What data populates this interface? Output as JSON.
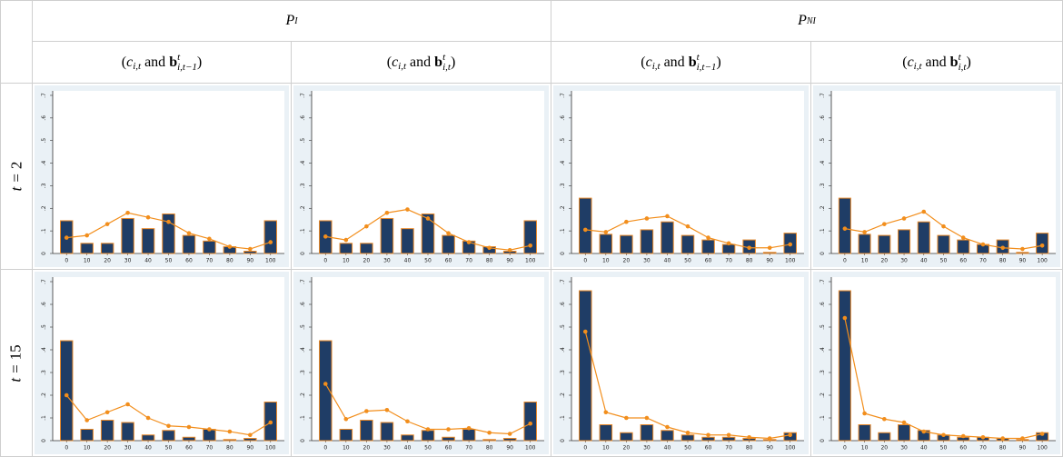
{
  "header": {
    "groups": [
      {
        "main": "P",
        "sub": "I"
      },
      {
        "main": "P",
        "sub": "NI"
      }
    ],
    "columns": [
      {
        "open": "(",
        "c": "c",
        "c_sub": "i,t",
        "and": "and",
        "b": "b",
        "b_sup": "t",
        "b_sub": "i,t−1",
        "close": ")"
      },
      {
        "open": "(",
        "c": "c",
        "c_sub": "i,t",
        "and": "and",
        "b": "b",
        "b_sup": "t",
        "b_sub": "i,t",
        "close": ")"
      },
      {
        "open": "(",
        "c": "c",
        "c_sub": "i,t",
        "and": "and",
        "b": "b",
        "b_sup": "t",
        "b_sub": "i,t−1",
        "close": ")"
      },
      {
        "open": "(",
        "c": "c",
        "c_sub": "i,t",
        "and": "and",
        "b": "b",
        "b_sup": "t",
        "b_sub": "i,t",
        "close": ")"
      }
    ]
  },
  "rows": [
    {
      "var": "t",
      "eq": "=",
      "num": "2"
    },
    {
      "var": "t",
      "eq": "=",
      "num": "15"
    }
  ],
  "chart_data": [
    {
      "type": "bar",
      "categories": [
        0,
        10,
        20,
        30,
        40,
        50,
        60,
        70,
        80,
        90,
        100
      ],
      "ylim": [
        0,
        0.72
      ],
      "yticks": [
        0,
        {
          "value": 0.1,
          "label": ".1"
        },
        {
          "value": 0.2,
          "label": ".2"
        },
        {
          "value": 0.3,
          "label": ".3"
        },
        {
          "value": 0.4,
          "label": ".4"
        },
        {
          "value": 0.5,
          "label": ".5"
        },
        {
          "value": 0.6,
          "label": ".6"
        },
        {
          "value": 0.7,
          "label": ".7"
        }
      ],
      "series": [
        {
          "type": "bar",
          "color": "#1f3d66",
          "edge": "#e8892a",
          "values": [
            0.145,
            0.045,
            0.045,
            0.155,
            0.11,
            0.175,
            0.08,
            0.055,
            0.03,
            0.01,
            0.145
          ]
        },
        {
          "type": "line",
          "color": "#f28e1c",
          "values": [
            0.07,
            0.08,
            0.13,
            0.18,
            0.16,
            0.14,
            0.09,
            0.065,
            0.03,
            0.02,
            0.05
          ]
        }
      ]
    },
    {
      "type": "bar",
      "categories": [
        0,
        10,
        20,
        30,
        40,
        50,
        60,
        70,
        80,
        90,
        100
      ],
      "ylim": [
        0,
        0.72
      ],
      "yticks": [
        0,
        {
          "value": 0.1,
          "label": ".1"
        },
        {
          "value": 0.2,
          "label": ".2"
        },
        {
          "value": 0.3,
          "label": ".3"
        },
        {
          "value": 0.4,
          "label": ".4"
        },
        {
          "value": 0.5,
          "label": ".5"
        },
        {
          "value": 0.6,
          "label": ".6"
        },
        {
          "value": 0.7,
          "label": ".7"
        }
      ],
      "series": [
        {
          "type": "bar",
          "color": "#1f3d66",
          "edge": "#e8892a",
          "values": [
            0.145,
            0.045,
            0.045,
            0.155,
            0.11,
            0.175,
            0.08,
            0.055,
            0.03,
            0.01,
            0.145
          ]
        },
        {
          "type": "line",
          "color": "#f28e1c",
          "values": [
            0.075,
            0.06,
            0.12,
            0.18,
            0.195,
            0.155,
            0.09,
            0.05,
            0.025,
            0.015,
            0.035
          ]
        }
      ]
    },
    {
      "type": "bar",
      "categories": [
        0,
        10,
        20,
        30,
        40,
        50,
        60,
        70,
        80,
        90,
        100
      ],
      "ylim": [
        0,
        0.72
      ],
      "yticks": [
        0,
        {
          "value": 0.1,
          "label": ".1"
        },
        {
          "value": 0.2,
          "label": ".2"
        },
        {
          "value": 0.3,
          "label": ".3"
        },
        {
          "value": 0.4,
          "label": ".4"
        },
        {
          "value": 0.5,
          "label": ".5"
        },
        {
          "value": 0.6,
          "label": ".6"
        },
        {
          "value": 0.7,
          "label": ".7"
        }
      ],
      "series": [
        {
          "type": "bar",
          "color": "#1f3d66",
          "edge": "#e8892a",
          "values": [
            0.245,
            0.085,
            0.08,
            0.105,
            0.14,
            0.08,
            0.06,
            0.04,
            0.06,
            0.005,
            0.09
          ]
        },
        {
          "type": "line",
          "color": "#f28e1c",
          "values": [
            0.105,
            0.095,
            0.14,
            0.155,
            0.165,
            0.12,
            0.07,
            0.045,
            0.025,
            0.025,
            0.04
          ]
        }
      ]
    },
    {
      "type": "bar",
      "categories": [
        0,
        10,
        20,
        30,
        40,
        50,
        60,
        70,
        80,
        90,
        100
      ],
      "ylim": [
        0,
        0.72
      ],
      "yticks": [
        0,
        {
          "value": 0.1,
          "label": ".1"
        },
        {
          "value": 0.2,
          "label": ".2"
        },
        {
          "value": 0.3,
          "label": ".3"
        },
        {
          "value": 0.4,
          "label": ".4"
        },
        {
          "value": 0.5,
          "label": ".5"
        },
        {
          "value": 0.6,
          "label": ".6"
        },
        {
          "value": 0.7,
          "label": ".7"
        }
      ],
      "series": [
        {
          "type": "bar",
          "color": "#1f3d66",
          "edge": "#e8892a",
          "values": [
            0.245,
            0.085,
            0.08,
            0.105,
            0.14,
            0.08,
            0.06,
            0.04,
            0.06,
            0.005,
            0.09
          ]
        },
        {
          "type": "line",
          "color": "#f28e1c",
          "values": [
            0.11,
            0.095,
            0.13,
            0.155,
            0.185,
            0.12,
            0.07,
            0.04,
            0.025,
            0.02,
            0.035
          ]
        }
      ]
    },
    {
      "type": "bar",
      "categories": [
        0,
        10,
        20,
        30,
        40,
        50,
        60,
        70,
        80,
        90,
        100
      ],
      "ylim": [
        0,
        0.72
      ],
      "yticks": [
        0,
        {
          "value": 0.1,
          "label": ".1"
        },
        {
          "value": 0.2,
          "label": ".2"
        },
        {
          "value": 0.3,
          "label": ".3"
        },
        {
          "value": 0.4,
          "label": ".4"
        },
        {
          "value": 0.5,
          "label": ".5"
        },
        {
          "value": 0.6,
          "label": ".6"
        },
        {
          "value": 0.7,
          "label": ".7"
        }
      ],
      "series": [
        {
          "type": "bar",
          "color": "#1f3d66",
          "edge": "#e8892a",
          "values": [
            0.44,
            0.05,
            0.09,
            0.08,
            0.025,
            0.045,
            0.015,
            0.05,
            0.005,
            0.01,
            0.17
          ]
        },
        {
          "type": "line",
          "color": "#f28e1c",
          "values": [
            0.2,
            0.09,
            0.125,
            0.16,
            0.1,
            0.065,
            0.06,
            0.05,
            0.04,
            0.025,
            0.08
          ]
        }
      ]
    },
    {
      "type": "bar",
      "categories": [
        0,
        10,
        20,
        30,
        40,
        50,
        60,
        70,
        80,
        90,
        100
      ],
      "ylim": [
        0,
        0.72
      ],
      "yticks": [
        0,
        {
          "value": 0.1,
          "label": ".1"
        },
        {
          "value": 0.2,
          "label": ".2"
        },
        {
          "value": 0.3,
          "label": ".3"
        },
        {
          "value": 0.4,
          "label": ".4"
        },
        {
          "value": 0.5,
          "label": ".5"
        },
        {
          "value": 0.6,
          "label": ".6"
        },
        {
          "value": 0.7,
          "label": ".7"
        }
      ],
      "series": [
        {
          "type": "bar",
          "color": "#1f3d66",
          "edge": "#e8892a",
          "values": [
            0.44,
            0.05,
            0.09,
            0.08,
            0.025,
            0.045,
            0.015,
            0.05,
            0.005,
            0.01,
            0.17
          ]
        },
        {
          "type": "line",
          "color": "#f28e1c",
          "values": [
            0.25,
            0.095,
            0.13,
            0.135,
            0.085,
            0.05,
            0.05,
            0.055,
            0.035,
            0.03,
            0.075
          ]
        }
      ]
    },
    {
      "type": "bar",
      "categories": [
        0,
        10,
        20,
        30,
        40,
        50,
        60,
        70,
        80,
        90,
        100
      ],
      "ylim": [
        0,
        0.72
      ],
      "yticks": [
        0,
        {
          "value": 0.1,
          "label": ".1"
        },
        {
          "value": 0.2,
          "label": ".2"
        },
        {
          "value": 0.3,
          "label": ".3"
        },
        {
          "value": 0.4,
          "label": ".4"
        },
        {
          "value": 0.5,
          "label": ".5"
        },
        {
          "value": 0.6,
          "label": ".6"
        },
        {
          "value": 0.7,
          "label": ".7"
        }
      ],
      "series": [
        {
          "type": "bar",
          "color": "#1f3d66",
          "edge": "#e8892a",
          "values": [
            0.66,
            0.07,
            0.035,
            0.07,
            0.045,
            0.025,
            0.015,
            0.015,
            0.01,
            0.005,
            0.035
          ]
        },
        {
          "type": "line",
          "color": "#f28e1c",
          "values": [
            0.48,
            0.125,
            0.1,
            0.1,
            0.06,
            0.035,
            0.025,
            0.025,
            0.015,
            0.01,
            0.025
          ]
        }
      ]
    },
    {
      "type": "bar",
      "categories": [
        0,
        10,
        20,
        30,
        40,
        50,
        60,
        70,
        80,
        90,
        100
      ],
      "ylim": [
        0,
        0.72
      ],
      "yticks": [
        0,
        {
          "value": 0.1,
          "label": ".1"
        },
        {
          "value": 0.2,
          "label": ".2"
        },
        {
          "value": 0.3,
          "label": ".3"
        },
        {
          "value": 0.4,
          "label": ".4"
        },
        {
          "value": 0.5,
          "label": ".5"
        },
        {
          "value": 0.6,
          "label": ".6"
        },
        {
          "value": 0.7,
          "label": ".7"
        }
      ],
      "series": [
        {
          "type": "bar",
          "color": "#1f3d66",
          "edge": "#e8892a",
          "values": [
            0.66,
            0.07,
            0.035,
            0.07,
            0.045,
            0.025,
            0.015,
            0.015,
            0.01,
            0.005,
            0.035
          ]
        },
        {
          "type": "line",
          "color": "#f28e1c",
          "values": [
            0.54,
            0.12,
            0.095,
            0.08,
            0.04,
            0.025,
            0.02,
            0.015,
            0.01,
            0.01,
            0.03
          ]
        }
      ]
    }
  ]
}
